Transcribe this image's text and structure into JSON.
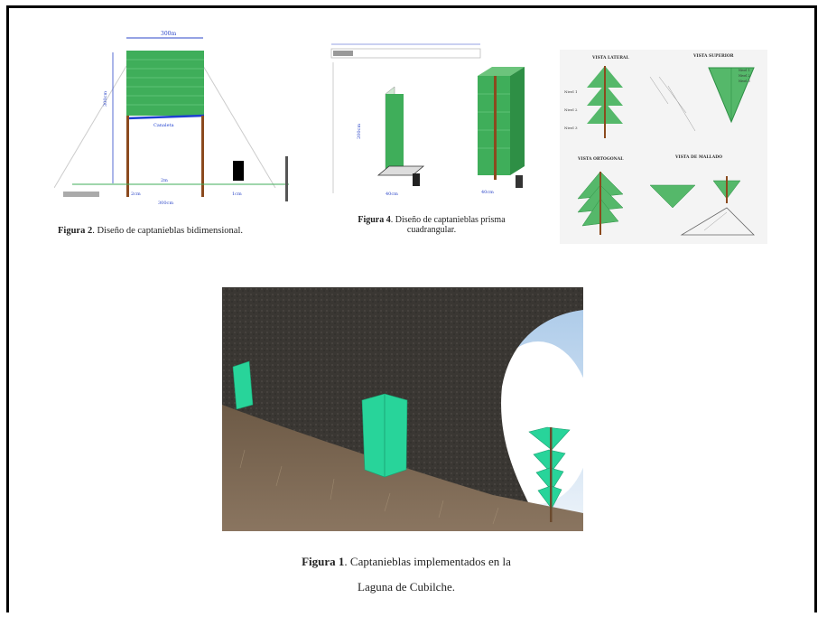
{
  "figure2": {
    "label": "Figura 2",
    "caption": ". Diseño de captanieblas bidimensional."
  },
  "figure4": {
    "label": "Figura 4",
    "caption_line1": ". Diseño de captanieblas prisma",
    "caption_line2": "cuadrangular."
  },
  "figure1": {
    "label": "Figura 1",
    "caption_line1": ". Captanieblas implementados en la",
    "caption_line2": "Laguna de Cubilche."
  },
  "diagram3": {
    "views": [
      "VISTA LATERAL",
      "VISTA SUPERIOR",
      "VISTA ORTOGONAL",
      "VISTA DE MALLADO"
    ],
    "niveles": [
      "Nivel 1",
      "Nivel 2",
      "Nivel 3"
    ]
  },
  "colors": {
    "mesh": "#3fae5a",
    "mesh_photo": "#28d49a",
    "pole": "#8b4a1e",
    "frame": "#000000"
  }
}
